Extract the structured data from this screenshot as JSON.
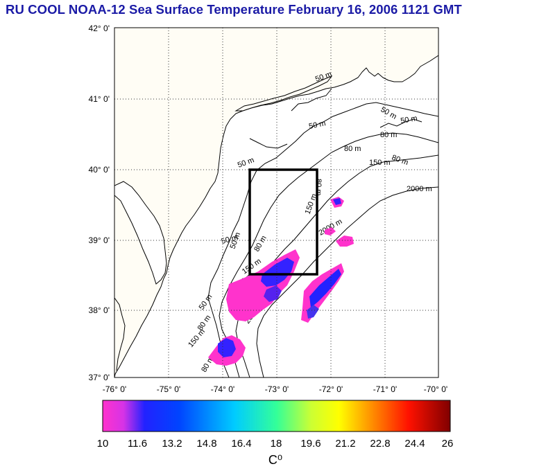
{
  "title": "RU COOL  NOAA-12 Sea Surface Temperature February 16, 2006 1121 GMT",
  "map": {
    "lat_labels": [
      "42° 0'",
      "41° 0'",
      "40° 0'",
      "39° 0'",
      "38° 0'",
      "37° 0'"
    ],
    "lon_labels": [
      "-76° 0'",
      "-75° 0'",
      "-74° 0'",
      "-73° 0'",
      "-72° 0'",
      "-71° 0'",
      "-70° 0'"
    ],
    "lat_range": [
      37,
      42
    ],
    "lon_range": [
      -76,
      -70
    ],
    "grid": "dotted",
    "land_color": "#fffdf5",
    "outline_color": "#000000",
    "study_box": {
      "lat_min": 38.5,
      "lat_max": 40.0,
      "lon_min": -73.5,
      "lon_max": -72.25
    },
    "contour_labels": [
      "50 m",
      "50 m",
      "80 m",
      "150 m",
      "2000 m",
      "50 m",
      "50 m",
      "80 m",
      "80 m",
      "150 m",
      "2000 m",
      "50 m",
      "80 m",
      "150 m",
      "2000 m",
      "50 m",
      "80 m",
      "150 m",
      "50 m",
      "50 m",
      "80 m",
      "150 m",
      "80 m"
    ]
  },
  "colorbar": {
    "ticks": [
      "10",
      "11.6",
      "13.2",
      "14.8",
      "16.4",
      "18",
      "19.6",
      "21.2",
      "22.8",
      "24.4",
      "26"
    ],
    "min": 10,
    "max": 26,
    "unit": "C⁰",
    "stops": [
      "#ff33cc",
      "#2222ff",
      "#00ccff",
      "#33ff99",
      "#ffff00",
      "#ff8800",
      "#ff0000",
      "#800000"
    ]
  }
}
